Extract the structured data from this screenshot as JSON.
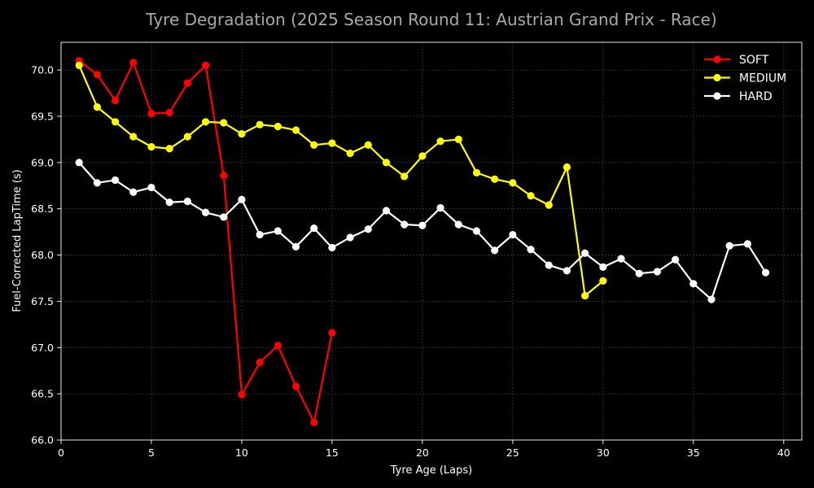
{
  "chart_data": {
    "type": "line",
    "title": "Tyre Degradation (2025 Season Round 11: Austrian Grand Prix - Race)",
    "xlabel": "Tyre Age (Laps)",
    "ylabel": "Fuel-Corrected LapTime (s)",
    "xlim": [
      0,
      41
    ],
    "ylim": [
      66.0,
      70.3
    ],
    "xticks": [
      0,
      5,
      10,
      15,
      20,
      25,
      30,
      35,
      40
    ],
    "yticks": [
      66.0,
      66.5,
      67.0,
      67.5,
      68.0,
      68.5,
      69.0,
      69.5,
      70.0
    ],
    "grid": true,
    "legend_position": "top-right",
    "series": [
      {
        "name": "SOFT",
        "color": "#ff0000",
        "x": [
          1,
          2,
          3,
          4,
          5,
          6,
          7,
          8,
          9,
          10,
          11,
          12,
          13,
          14,
          15
        ],
        "y": [
          70.1,
          69.95,
          69.67,
          70.08,
          69.53,
          69.54,
          69.86,
          70.05,
          68.86,
          66.49,
          66.84,
          67.02,
          66.58,
          66.19,
          67.16
        ]
      },
      {
        "name": "MEDIUM",
        "color": "#ffff00",
        "x": [
          1,
          2,
          3,
          4,
          5,
          6,
          7,
          8,
          9,
          10,
          11,
          12,
          13,
          14,
          15,
          16,
          17,
          18,
          19,
          20,
          21,
          22,
          23,
          24,
          25,
          26,
          27,
          28,
          29,
          30
        ],
        "y": [
          70.05,
          69.6,
          69.44,
          69.28,
          69.17,
          69.15,
          69.28,
          69.44,
          69.43,
          69.31,
          69.41,
          69.39,
          69.35,
          69.19,
          69.21,
          69.1,
          69.19,
          69.0,
          68.85,
          69.07,
          69.23,
          69.25,
          68.89,
          68.82,
          68.78,
          68.64,
          68.54,
          68.95,
          67.56,
          67.72
        ]
      },
      {
        "name": "HARD",
        "color": "#ffffff",
        "x": [
          1,
          2,
          3,
          4,
          5,
          6,
          7,
          8,
          9,
          10,
          11,
          12,
          13,
          14,
          15,
          16,
          17,
          18,
          19,
          20,
          21,
          22,
          23,
          24,
          25,
          26,
          27,
          28,
          29,
          30,
          31,
          32,
          33,
          34,
          35,
          36,
          37,
          38,
          39
        ],
        "y": [
          69.0,
          68.78,
          68.81,
          68.68,
          68.73,
          68.57,
          68.58,
          68.46,
          68.41,
          68.6,
          68.22,
          68.26,
          68.09,
          68.29,
          68.08,
          68.19,
          68.28,
          68.48,
          68.33,
          68.32,
          68.51,
          68.33,
          68.26,
          68.05,
          68.22,
          68.06,
          67.89,
          67.83,
          68.02,
          67.87,
          67.96,
          67.8,
          67.82,
          67.95,
          67.69,
          67.52,
          68.1,
          68.12,
          67.81
        ]
      }
    ]
  }
}
